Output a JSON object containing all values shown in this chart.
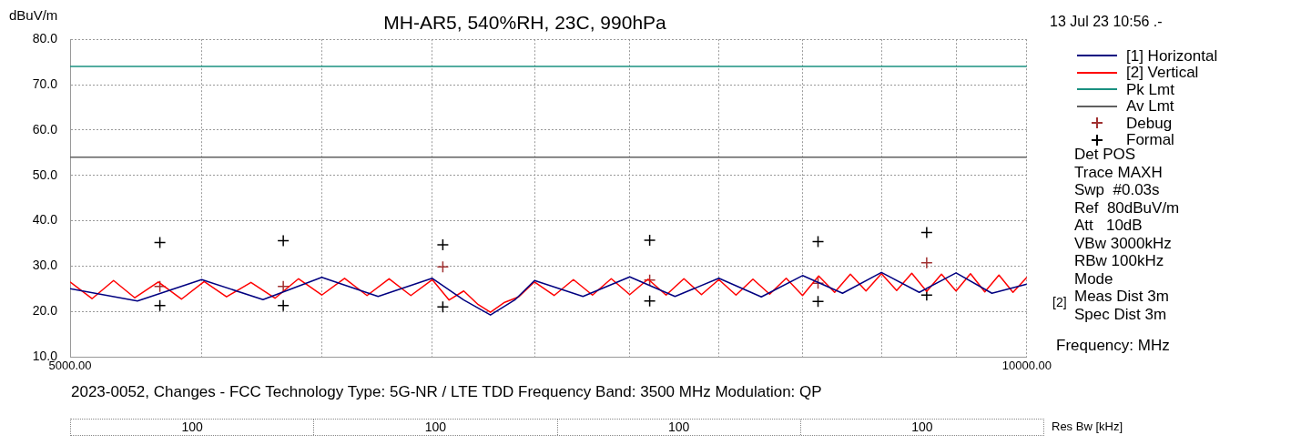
{
  "chart_data": {
    "type": "line",
    "title": "MH-AR5, 540%RH, 23C, 990hPa",
    "ylabel": "dBuV/m",
    "xlabel": "Frequency: MHz",
    "log": "x",
    "grid": true,
    "legend": "right",
    "xlim": [
      5000,
      10000
    ],
    "xticks": [
      {
        "value": 5000,
        "label": "5000.00"
      },
      {
        "value": 5500,
        "label": null
      },
      {
        "value": 6000,
        "label": null
      },
      {
        "value": 6500,
        "label": null
      },
      {
        "value": 7000,
        "label": null
      },
      {
        "value": 7500,
        "label": null
      },
      {
        "value": 8000,
        "label": null
      },
      {
        "value": 8500,
        "label": null
      },
      {
        "value": 9000,
        "label": null
      },
      {
        "value": 9500,
        "label": null
      },
      {
        "value": 10000,
        "label": "10000.00"
      }
    ],
    "ylim": [
      10,
      80
    ],
    "yticks": [
      {
        "value": 10,
        "label": "10.0"
      },
      {
        "value": 20,
        "label": "20.0"
      },
      {
        "value": 30,
        "label": "30.0"
      },
      {
        "value": 40,
        "label": "40.0"
      },
      {
        "value": 50,
        "label": "50.0"
      },
      {
        "value": 60,
        "label": "60.0"
      },
      {
        "value": 70,
        "label": "70.0"
      },
      {
        "value": 80,
        "label": "80.0"
      }
    ],
    "series": [
      {
        "name": "[1] Horizontal",
        "color": "#000080",
        "x": [
          5000,
          5250,
          5500,
          5750,
          6000,
          6250,
          6500,
          6650,
          6780,
          6900,
          7000,
          7250,
          7500,
          7750,
          8000,
          8250,
          8500,
          8750,
          9000,
          9250,
          9500,
          9750,
          10000
        ],
        "values": [
          25,
          22.3,
          27,
          22.6,
          27.5,
          23.3,
          27.3,
          22.5,
          19.2,
          22.5,
          26.8,
          23.3,
          27.6,
          23.3,
          27.3,
          23.2,
          27.9,
          24,
          28.6,
          24.2,
          28.5,
          24,
          26
        ]
      },
      {
        "name": "[2] Vertical",
        "color": "#ff0000",
        "x": [
          5000,
          5080,
          5160,
          5240,
          5330,
          5420,
          5510,
          5600,
          5700,
          5800,
          5900,
          6000,
          6100,
          6200,
          6300,
          6400,
          6500,
          6580,
          6650,
          6720,
          6780,
          6850,
          6920,
          7000,
          7100,
          7200,
          7300,
          7400,
          7500,
          7600,
          7700,
          7800,
          7900,
          8000,
          8100,
          8200,
          8300,
          8400,
          8500,
          8600,
          8700,
          8800,
          8900,
          9000,
          9100,
          9200,
          9300,
          9400,
          9500,
          9600,
          9700,
          9800,
          9900,
          10000
        ],
        "values": [
          26.5,
          22.8,
          26.8,
          23,
          26.5,
          22.7,
          26.6,
          23.2,
          26.4,
          22.9,
          27.2,
          23.6,
          27.3,
          23.5,
          27.2,
          23.5,
          27,
          22.5,
          24.5,
          21.5,
          19.8,
          22,
          23.2,
          26.5,
          23.5,
          27,
          23.6,
          27.2,
          23.7,
          27.1,
          23.6,
          27.2,
          23.7,
          27,
          23.6,
          27.1,
          23.8,
          27.3,
          23.5,
          27.8,
          24.2,
          28.2,
          24.5,
          28.3,
          24.6,
          28.4,
          24.4,
          28.2,
          24.5,
          28.3,
          24.3,
          28,
          24.2,
          27.5
        ]
      },
      {
        "name": "Pk Lmt",
        "color": "#1a9080",
        "x": [
          5000,
          10000
        ],
        "values": [
          74,
          74
        ]
      },
      {
        "name": "Av Lmt",
        "color": "#606060",
        "x": [
          5000,
          10000
        ],
        "values": [
          54,
          54
        ]
      },
      {
        "name": "Debug",
        "color": "#a03030",
        "type": "scatter",
        "marker": "cross",
        "x": [
          5336,
          5835,
          6550,
          7609,
          8596,
          9300
        ],
        "values": [
          25.5,
          25.5,
          29.8,
          26.9,
          26.2,
          30.7
        ]
      },
      {
        "name": "Formal",
        "color": "#000000",
        "type": "scatter",
        "marker": "cross",
        "x": [
          5336,
          5336,
          5835,
          5835,
          6550,
          6550,
          7609,
          7609,
          8596,
          8596,
          9300,
          9300
        ],
        "values": [
          35.2,
          21.3,
          35.6,
          21.3,
          34.7,
          21,
          35.7,
          22.3,
          35.4,
          22.2,
          37.4,
          23.6
        ]
      }
    ],
    "annotations": [
      "13 Jul 23 10:56 .-",
      "Det POS",
      "Trace MAXH",
      "Swp  #0.03s",
      "Ref  80dBuV/m",
      "Att   10dB",
      "VBw 3000kHz",
      "RBw 100kHz",
      "Mode",
      "Meas Dist 3m",
      "Spec Dist 3m",
      "[2]",
      "2023-0052, Changes - FCC Technology Type: 5G-NR / LTE TDD Frequency Band: 3500 MHz Modulation: QP",
      "100",
      "100",
      "100",
      "100",
      "Res Bw [kHz]"
    ]
  }
}
